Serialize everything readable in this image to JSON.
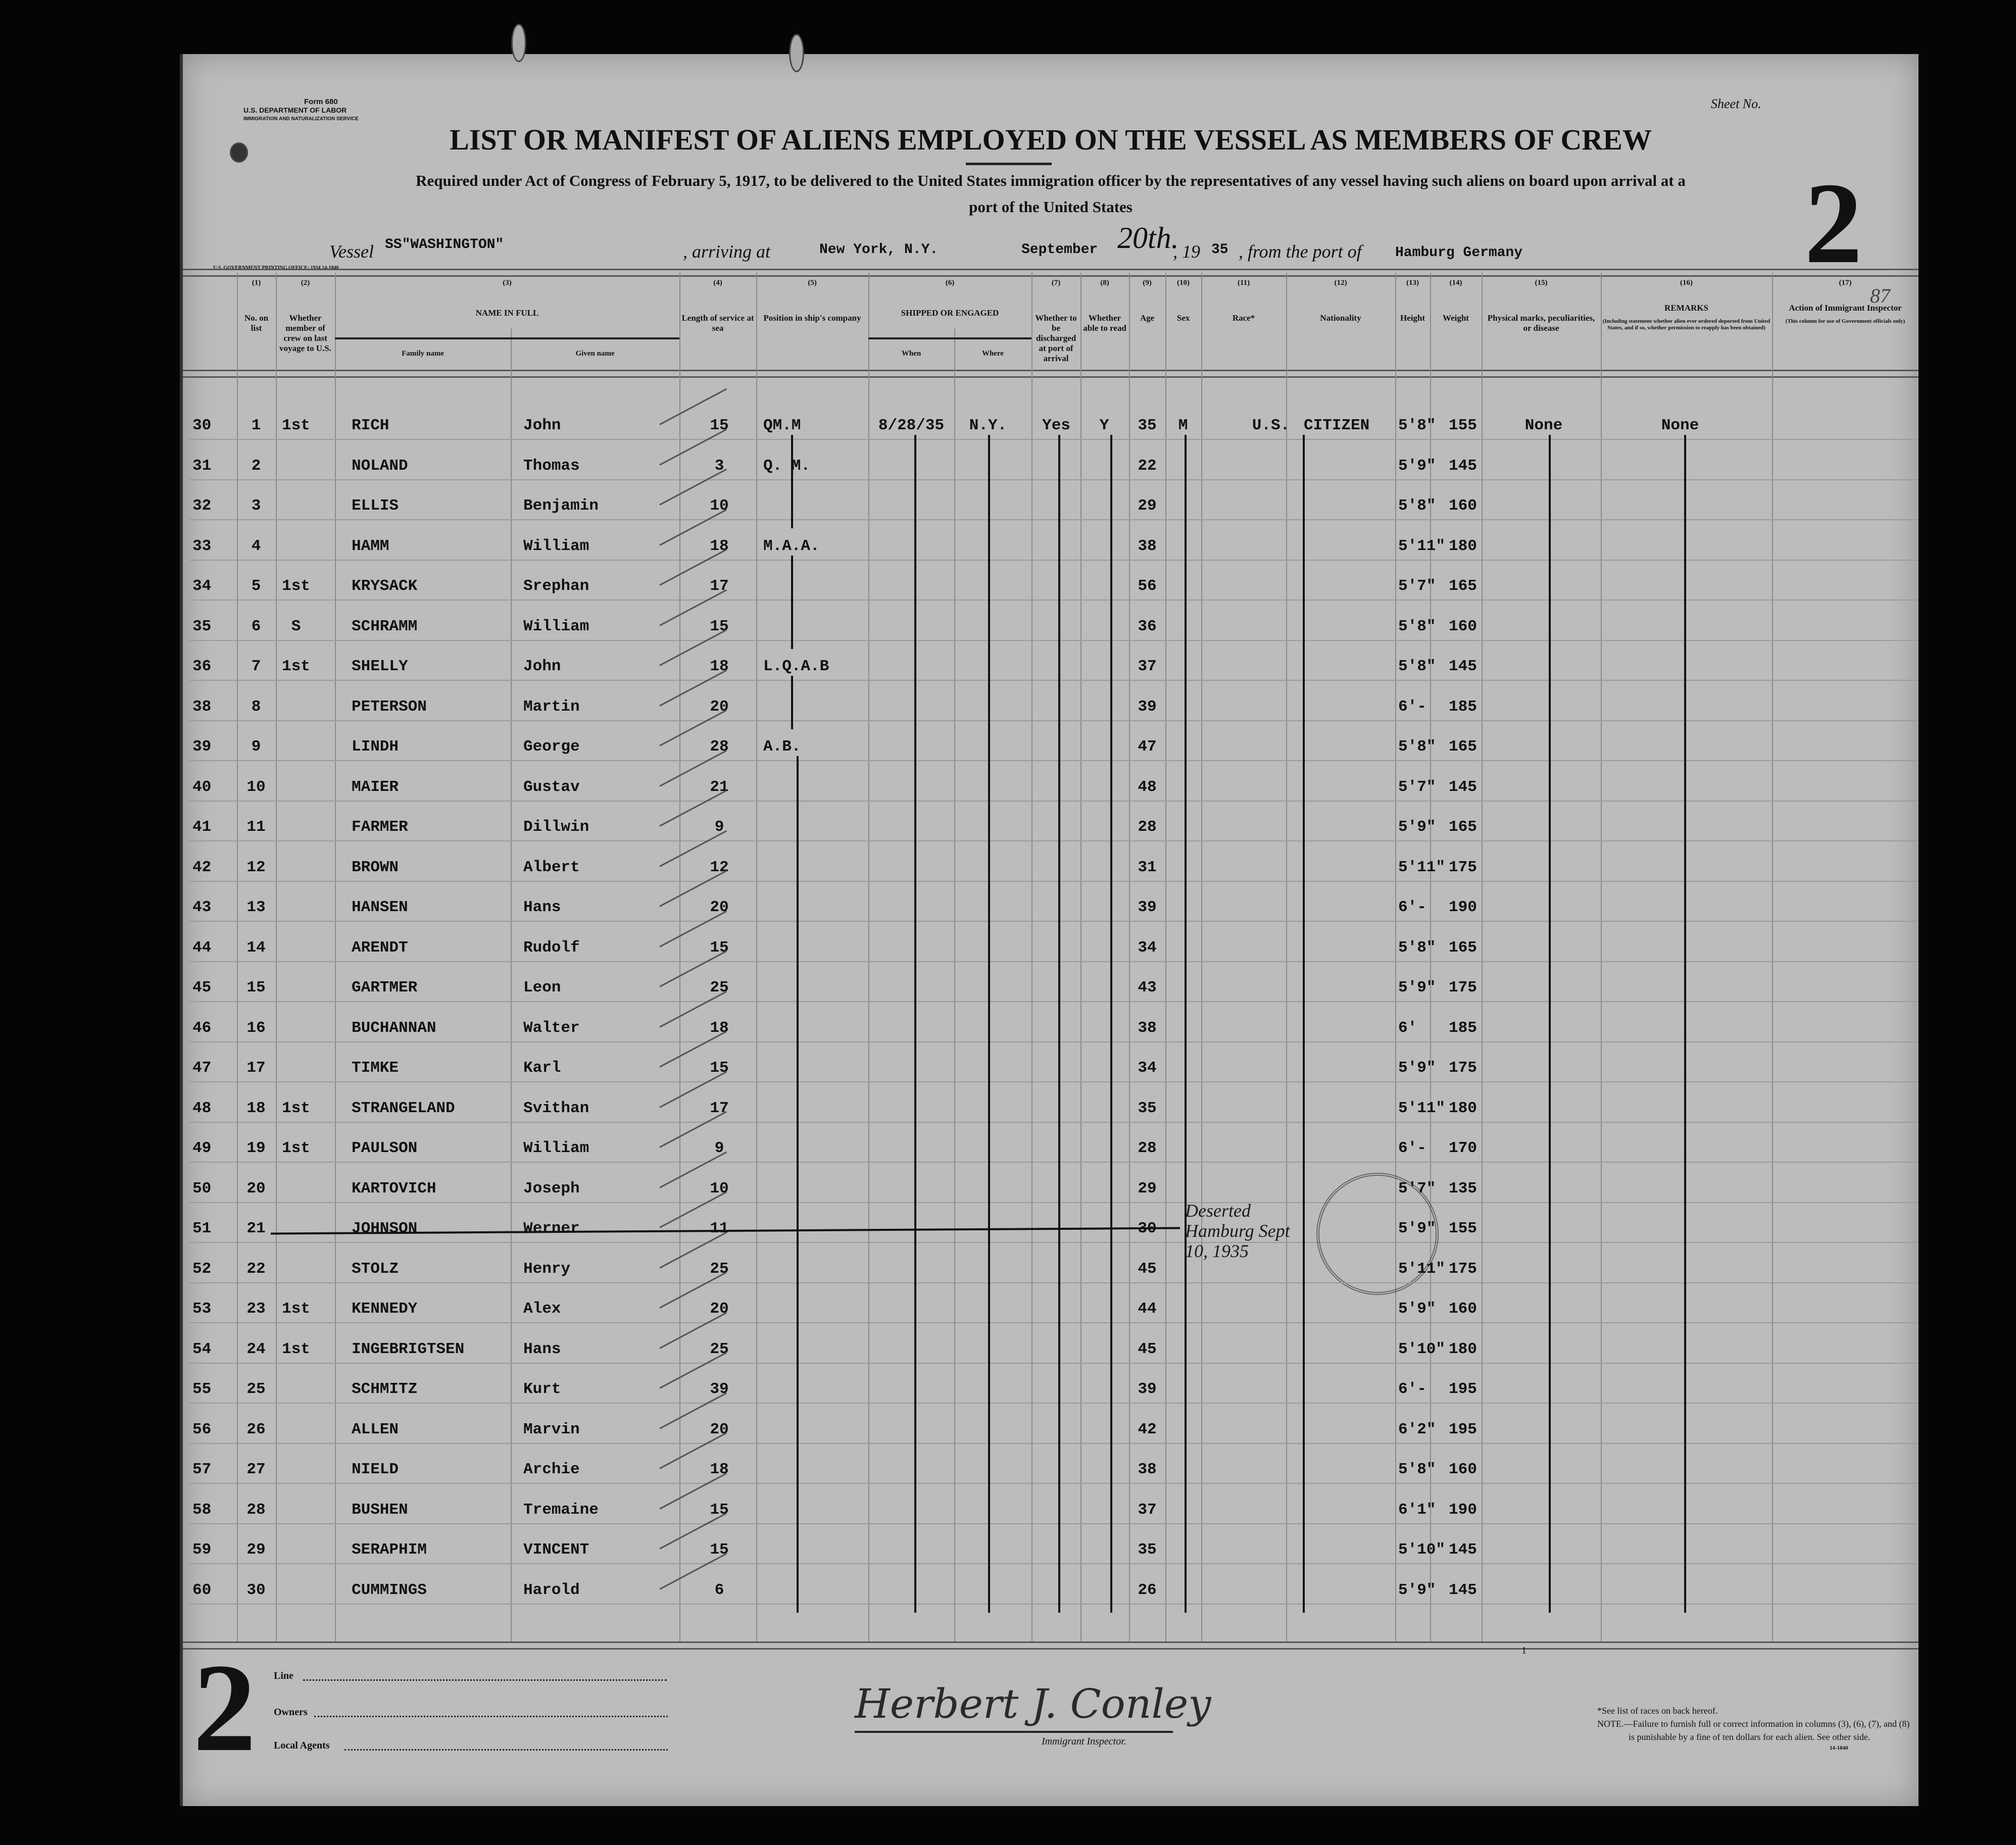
{
  "form": {
    "form_number": "Form 680",
    "department": "U.S. DEPARTMENT OF LABOR",
    "service": "IMMIGRATION AND NATURALIZATION SERVICE",
    "sheet_label": "Sheet No.",
    "sheet_number": "2",
    "page_stamp": "87",
    "title": "LIST OR MANIFEST OF ALIENS EMPLOYED ON THE VESSEL AS MEMBERS OF CREW",
    "subtitle_line1": "Required under Act of Congress of February 5, 1917, to be delivered to the United States immigration officer by the representatives of any vessel having such aliens on board upon arrival at a",
    "subtitle_line2": "port of the United States",
    "printer_note": "U.S. GOVERNMENT PRINTING OFFICE: 1934   14-1840"
  },
  "voyage": {
    "vessel_label": "Vessel",
    "vessel": "SS\"WASHINGTON\"",
    "arriving_label": ", arriving at",
    "port": "New York, N.Y.",
    "month": "September",
    "day": "20th.",
    "year_prefix": ", 19",
    "year": "35",
    "from_label": ", from the port of",
    "from_port": "Hamburg Germany"
  },
  "columns": [
    {
      "num": "(1)",
      "label": "No. on list"
    },
    {
      "num": "(2)",
      "label": "Whether member of crew on last voyage to U.S."
    },
    {
      "num": "(3)",
      "label": "NAME IN FULL",
      "sub": [
        "Family name",
        "Given name"
      ]
    },
    {
      "num": "(4)",
      "label": "Length of service at sea"
    },
    {
      "num": "(5)",
      "label": "Position in ship's company"
    },
    {
      "num": "(6)",
      "label": "SHIPPED OR ENGAGED",
      "sub": [
        "When",
        "Where"
      ]
    },
    {
      "num": "(7)",
      "label": "Whether to be discharged at port of arrival"
    },
    {
      "num": "(8)",
      "label": "Whether able to read"
    },
    {
      "num": "(9)",
      "label": "Age"
    },
    {
      "num": "(10)",
      "label": "Sex"
    },
    {
      "num": "(11)",
      "label": "Race*"
    },
    {
      "num": "(12)",
      "label": "Nationality"
    },
    {
      "num": "(13)",
      "label": "Height"
    },
    {
      "num": "(14)",
      "label": "Weight"
    },
    {
      "num": "(15)",
      "label": "Physical marks, peculiarities, or disease"
    },
    {
      "num": "(16)",
      "label": "REMARKS",
      "note": "(Including statement whether alien ever ordered deported from United States, and if so, whether permission to reapply has been obtained)"
    },
    {
      "num": "(17)",
      "label": "Action of Immigrant Inspector",
      "note": "(This column for use of Government officials only)"
    }
  ],
  "rows": [
    {
      "line": "30",
      "no": "1",
      "last": "1st",
      "family": "RICH",
      "given": "John",
      "service": "15",
      "position": "QM.M",
      "when": "8/28/35",
      "where": "N.Y.",
      "discharged": "Yes",
      "read": "Y",
      "age": "35",
      "sex": "M",
      "race": "U.S.",
      "nationality": "CITIZEN",
      "height": "5'8\"",
      "weight": "155",
      "marks": "None",
      "remarks": "None"
    },
    {
      "line": "31",
      "no": "2",
      "last": "",
      "family": "NOLAND",
      "given": "Thomas",
      "service": "3",
      "position": "Q. M.",
      "age": "22",
      "height": "5'9\"",
      "weight": "145"
    },
    {
      "line": "32",
      "no": "3",
      "last": "",
      "family": "ELLIS",
      "given": "Benjamin",
      "service": "10",
      "age": "29",
      "height": "5'8\"",
      "weight": "160"
    },
    {
      "line": "33",
      "no": "4",
      "last": "",
      "family": "HAMM",
      "given": "William",
      "service": "18",
      "position": "M.A.A.",
      "age": "38",
      "height": "5'11\"",
      "weight": "180"
    },
    {
      "line": "34",
      "no": "5",
      "last": "1st",
      "family": "KRYSACK",
      "given": "Srephan",
      "service": "17",
      "age": "56",
      "height": "5'7\"",
      "weight": "165"
    },
    {
      "line": "35",
      "no": "6",
      "last": "S",
      "family": "SCHRAMM",
      "given": "William",
      "service": "15",
      "age": "36",
      "height": "5'8\"",
      "weight": "160"
    },
    {
      "line": "36",
      "no": "7",
      "last": "1st",
      "family": "SHELLY",
      "given": "John",
      "service": "18",
      "position": "L.Q.A.B",
      "age": "37",
      "height": "5'8\"",
      "weight": "145"
    },
    {
      "line": "38",
      "no": "8",
      "last": "",
      "family": "PETERSON",
      "given": "Martin",
      "service": "20",
      "age": "39",
      "height": "6'-",
      "weight": "185"
    },
    {
      "line": "39",
      "no": "9",
      "last": "",
      "family": "LINDH",
      "given": "George",
      "service": "28",
      "position": "A.B.",
      "age": "47",
      "height": "5'8\"",
      "weight": "165"
    },
    {
      "line": "40",
      "no": "10",
      "last": "",
      "family": "MAIER",
      "given": "Gustav",
      "service": "21",
      "age": "48",
      "height": "5'7\"",
      "weight": "145"
    },
    {
      "line": "41",
      "no": "11",
      "last": "",
      "family": "FARMER",
      "given": "Dillwin",
      "service": "9",
      "age": "28",
      "height": "5'9\"",
      "weight": "165"
    },
    {
      "line": "42",
      "no": "12",
      "last": "",
      "family": "BROWN",
      "given": "Albert",
      "service": "12",
      "age": "31",
      "height": "5'11\"",
      "weight": "175"
    },
    {
      "line": "43",
      "no": "13",
      "last": "",
      "family": "HANSEN",
      "given": "Hans",
      "service": "20",
      "age": "39",
      "height": "6'-",
      "weight": "190"
    },
    {
      "line": "44",
      "no": "14",
      "last": "",
      "family": "ARENDT",
      "given": "Rudolf",
      "service": "15",
      "age": "34",
      "height": "5'8\"",
      "weight": "165"
    },
    {
      "line": "45",
      "no": "15",
      "last": "",
      "family": "GARTMER",
      "given": "Leon",
      "service": "25",
      "age": "43",
      "height": "5'9\"",
      "weight": "175"
    },
    {
      "line": "46",
      "no": "16",
      "last": "",
      "family": "BUCHANNAN",
      "given": "Walter",
      "service": "18",
      "age": "38",
      "height": "6'",
      "weight": "185"
    },
    {
      "line": "47",
      "no": "17",
      "last": "",
      "family": "TIMKE",
      "given": "Karl",
      "service": "15",
      "age": "34",
      "height": "5'9\"",
      "weight": "175"
    },
    {
      "line": "48",
      "no": "18",
      "last": "1st",
      "family": "STRANGELAND",
      "given": "Svithan",
      "service": "17",
      "age": "35",
      "height": "5'11\"",
      "weight": "180"
    },
    {
      "line": "49",
      "no": "19",
      "last": "1st",
      "family": "PAULSON",
      "given": "William",
      "service": "9",
      "age": "28",
      "height": "6'-",
      "weight": "170"
    },
    {
      "line": "50",
      "no": "20",
      "last": "",
      "family": "KARTOVICH",
      "given": "Joseph",
      "service": "10",
      "age": "29",
      "height": "5'7\"",
      "weight": "135"
    },
    {
      "line": "51",
      "no": "21",
      "last": "",
      "family": "JOHNSON",
      "given": "Werner",
      "service": "11",
      "age": "30",
      "height": "5'9\"",
      "weight": "155",
      "annotation": "Deserted Hamburg Sept 10, 1935",
      "struck": true
    },
    {
      "line": "52",
      "no": "22",
      "last": "",
      "family": "STOLZ",
      "given": "Henry",
      "service": "25",
      "age": "45",
      "height": "5'11\"",
      "weight": "175"
    },
    {
      "line": "53",
      "no": "23",
      "last": "1st",
      "family": "KENNEDY",
      "given": "Alex",
      "service": "20",
      "age": "44",
      "height": "5'9\"",
      "weight": "160"
    },
    {
      "line": "54",
      "no": "24",
      "last": "1st",
      "family": "INGEBRIGTSEN",
      "given": "Hans",
      "service": "25",
      "age": "45",
      "height": "5'10\"",
      "weight": "180"
    },
    {
      "line": "55",
      "no": "25",
      "last": "",
      "family": "SCHMITZ",
      "given": "Kurt",
      "service": "39",
      "age": "39",
      "height": "6'-",
      "weight": "195"
    },
    {
      "line": "56",
      "no": "26",
      "last": "",
      "family": "ALLEN",
      "given": "Marvin",
      "service": "20",
      "age": "42",
      "height": "6'2\"",
      "weight": "195"
    },
    {
      "line": "57",
      "no": "27",
      "last": "",
      "family": "NIELD",
      "given": "Archie",
      "service": "18",
      "age": "38",
      "height": "5'8\"",
      "weight": "160"
    },
    {
      "line": "58",
      "no": "28",
      "last": "",
      "family": "BUSHEN",
      "given": "Tremaine",
      "service": "15",
      "age": "37",
      "height": "6'1\"",
      "weight": "190"
    },
    {
      "line": "59",
      "no": "29",
      "last": "",
      "family": "SERAPHIM",
      "given": "VINCENT",
      "service": "15",
      "age": "35",
      "height": "5'10\"",
      "weight": "145"
    },
    {
      "line": "60",
      "no": "30",
      "last": "",
      "family": "CUMMINGS",
      "given": "Harold",
      "service": "6",
      "age": "26",
      "height": "5'9\"",
      "weight": "145"
    }
  ],
  "footer": {
    "sheet_number": "2",
    "line_label": "Line",
    "owners_label": "Owners",
    "agents_label": "Local Agents",
    "signature": "Herbert J. Conley",
    "inspector_label": "Immigrant Inspector.",
    "races_note": "*See list of races on back hereof.",
    "note": "NOTE.—Failure to furnish full or correct information in columns (3), (6), (7), and (8)",
    "note2": "is punishable by a fine of ten dollars for each alien.   See other side.",
    "form_code": "14-1840",
    "stray_mark": "1"
  }
}
